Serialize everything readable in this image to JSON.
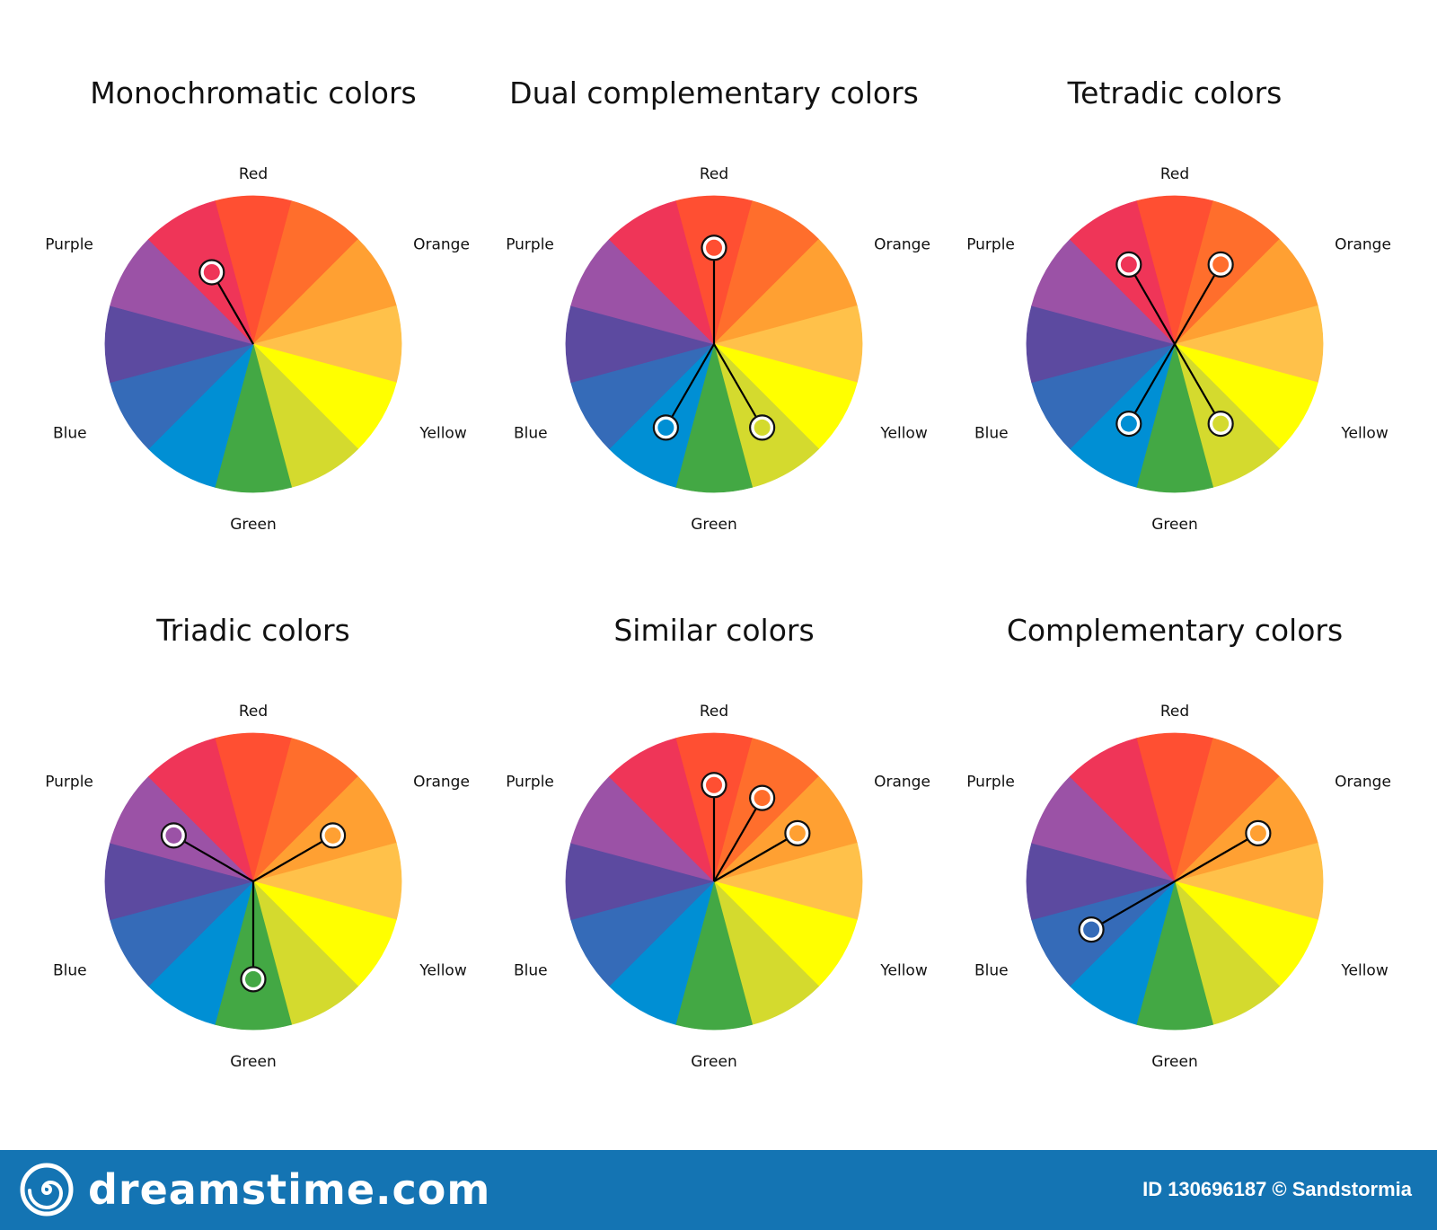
{
  "segment_colors": [
    "#ff4f32",
    "#ff6e2c",
    "#ffa032",
    "#ffc14a",
    "#ffff00",
    "#d4da2e",
    "#43a844",
    "#008fd4",
    "#356bb8",
    "#5c4aa0",
    "#9b52a6",
    "#ef3558"
  ],
  "wheel_labels": {
    "red": "Red",
    "orange": "Orange",
    "yellow": "Yellow",
    "green": "Green",
    "blue": "Blue",
    "purple": "Purple"
  },
  "wheels": [
    {
      "id": "monochromatic",
      "title": "Monochromatic colors",
      "markers": [
        {
          "segment": 11,
          "radius_frac": 0.56
        }
      ]
    },
    {
      "id": "dual-complementary",
      "title": "Dual complementary colors",
      "markers": [
        {
          "segment": 0,
          "radius_frac": 0.65
        },
        {
          "segment": 5,
          "radius_frac": 0.65
        },
        {
          "segment": 7,
          "radius_frac": 0.65
        }
      ]
    },
    {
      "id": "tetradic",
      "title": "Tetradic colors",
      "markers": [
        {
          "segment": 11,
          "radius_frac": 0.62
        },
        {
          "segment": 1,
          "radius_frac": 0.62
        },
        {
          "segment": 5,
          "radius_frac": 0.62
        },
        {
          "segment": 7,
          "radius_frac": 0.62
        }
      ]
    },
    {
      "id": "triadic",
      "title": "Triadic colors",
      "markers": [
        {
          "segment": 10,
          "radius_frac": 0.62
        },
        {
          "segment": 2,
          "radius_frac": 0.62
        },
        {
          "segment": 6,
          "radius_frac": 0.66
        }
      ]
    },
    {
      "id": "similar",
      "title": "Similar colors",
      "markers": [
        {
          "segment": 0,
          "radius_frac": 0.65
        },
        {
          "segment": 1,
          "radius_frac": 0.65
        },
        {
          "segment": 2,
          "radius_frac": 0.65
        }
      ]
    },
    {
      "id": "complementary",
      "title": "Complementary colors",
      "markers": [
        {
          "segment": 2,
          "radius_frac": 0.65
        },
        {
          "segment": 8,
          "radius_frac": 0.65
        }
      ]
    }
  ],
  "footer": {
    "brand": "dreamstime.com",
    "credit": "ID 130696187 © Sandstormia"
  },
  "colors": {
    "footer_bg": "#1474b3",
    "marker_stroke": "#111111",
    "line": "#000000"
  }
}
